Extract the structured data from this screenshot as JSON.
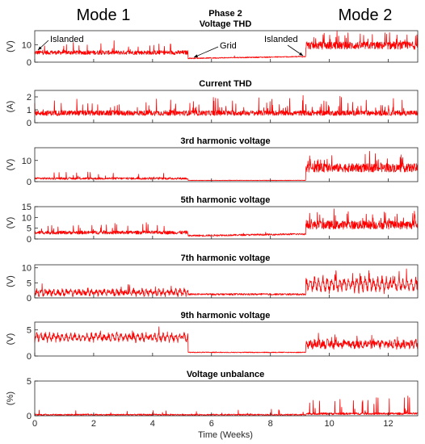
{
  "header": {
    "mode1_label": "Mode 1",
    "mode2_label": "Mode 2"
  },
  "annotations": {
    "islanded_left": "Islanded",
    "grid": "Grid",
    "islanded_right": "Islanded"
  },
  "colors": {
    "trace": "#ff0000",
    "axis": "#262626"
  },
  "chart_data": {
    "type": "line",
    "shared_x": {
      "label": "Time (Weeks)",
      "range": [
        0,
        13
      ],
      "ticks": [
        0,
        2,
        4,
        6,
        8,
        10,
        12
      ]
    },
    "regime_breaks_weeks": [
      5.2,
      9.2
    ],
    "panels": [
      {
        "id": "voltage-thd",
        "title_lines": [
          "Phase 2",
          "Voltage THD"
        ],
        "ylabel": "(V)",
        "ylim": [
          0,
          18
        ],
        "yticks": [
          0,
          10
        ],
        "levels": [
          {
            "from": 0,
            "to": 5.2,
            "base": 5.5,
            "noise": 1.2,
            "spikes": 0.6,
            "spike_max": 6
          },
          {
            "from": 5.2,
            "to": 9.2,
            "base": 2.2,
            "noise": 0.3,
            "spikes": 0.1,
            "spike_max": 1,
            "ramp": 1.0
          },
          {
            "from": 9.2,
            "to": 13,
            "base": 9.5,
            "noise": 2.2,
            "spikes": 1.0,
            "spike_max": 7
          }
        ]
      },
      {
        "id": "current-thd",
        "title_lines": [
          "Current THD"
        ],
        "ylabel": "(A)",
        "ylim": [
          0,
          2.5
        ],
        "yticks": [
          0,
          1,
          2
        ],
        "levels": [
          {
            "from": 0,
            "to": 13,
            "base": 0.75,
            "noise": 0.2,
            "spikes": 0.7,
            "spike_max": 1.2
          }
        ]
      },
      {
        "id": "3rd-harmonic",
        "title_lines": [
          "3rd harmonic voltage"
        ],
        "ylabel": "(V)",
        "ylim": [
          0,
          16
        ],
        "yticks": [
          0,
          10
        ],
        "levels": [
          {
            "from": 0,
            "to": 5.2,
            "base": 1.5,
            "noise": 0.5,
            "spikes": 0.4,
            "spike_max": 3
          },
          {
            "from": 5.2,
            "to": 9.2,
            "base": 0.6,
            "noise": 0.1,
            "spikes": 0.05,
            "spike_max": 0.5
          },
          {
            "from": 9.2,
            "to": 13,
            "base": 6.5,
            "noise": 2.0,
            "spikes": 1.0,
            "spike_max": 6
          }
        ]
      },
      {
        "id": "5th-harmonic",
        "title_lines": [
          "5th harmonic voltage"
        ],
        "ylabel": "(V)",
        "ylim": [
          0,
          15
        ],
        "yticks": [
          0,
          5,
          10,
          15
        ],
        "levels": [
          {
            "from": 0,
            "to": 5.2,
            "base": 3.0,
            "noise": 0.8,
            "spikes": 0.5,
            "spike_max": 4
          },
          {
            "from": 5.2,
            "to": 9.2,
            "base": 1.5,
            "noise": 0.4,
            "spikes": 0.1,
            "spike_max": 1,
            "ramp": 0.8
          },
          {
            "from": 9.2,
            "to": 13,
            "base": 6.5,
            "noise": 2.0,
            "spikes": 1.0,
            "spike_max": 6
          }
        ]
      },
      {
        "id": "7th-harmonic",
        "title_lines": [
          "7th harmonic voltage"
        ],
        "ylabel": "(V)",
        "ylim": [
          0,
          11
        ],
        "yticks": [
          0,
          5,
          10
        ],
        "levels": [
          {
            "from": 0,
            "to": 5.2,
            "base": 1.8,
            "noise": 0.8,
            "spikes": 0.3,
            "spike_max": 3,
            "sawtooth": 1.5
          },
          {
            "from": 5.2,
            "to": 9.2,
            "base": 1.2,
            "noise": 0.3,
            "spikes": 0.05,
            "spike_max": 0.5
          },
          {
            "from": 9.2,
            "to": 13,
            "base": 4.5,
            "noise": 1.2,
            "spikes": 0.6,
            "spike_max": 4,
            "sawtooth": 4.0
          }
        ]
      },
      {
        "id": "9th-harmonic",
        "title_lines": [
          "9th harmonic voltage"
        ],
        "ylabel": "(V)",
        "ylim": [
          0,
          6.5
        ],
        "yticks": [
          0,
          5
        ],
        "levels": [
          {
            "from": 0,
            "to": 5.2,
            "base": 3.6,
            "noise": 0.5,
            "spikes": 0.3,
            "spike_max": 1.5,
            "sawtooth": 1.2
          },
          {
            "from": 5.2,
            "to": 9.2,
            "base": 0.7,
            "noise": 0.08,
            "spikes": 0.02,
            "spike_max": 0.3
          },
          {
            "from": 9.2,
            "to": 13,
            "base": 2.3,
            "noise": 0.7,
            "spikes": 0.3,
            "spike_max": 2,
            "sawtooth": 0.8
          }
        ]
      },
      {
        "id": "voltage-unbalance",
        "title_lines": [
          "Voltage unbalance"
        ],
        "ylabel": "(%)",
        "ylim": [
          0,
          5
        ],
        "yticks": [
          0,
          5
        ],
        "levels": [
          {
            "from": 0,
            "to": 9.2,
            "base": 0.15,
            "noise": 0.1,
            "spikes": 0.3,
            "spike_max": 0.8
          },
          {
            "from": 9.2,
            "to": 13,
            "base": 0.3,
            "noise": 0.15,
            "spikes": 0.5,
            "spike_max": 2.5
          }
        ]
      }
    ]
  }
}
